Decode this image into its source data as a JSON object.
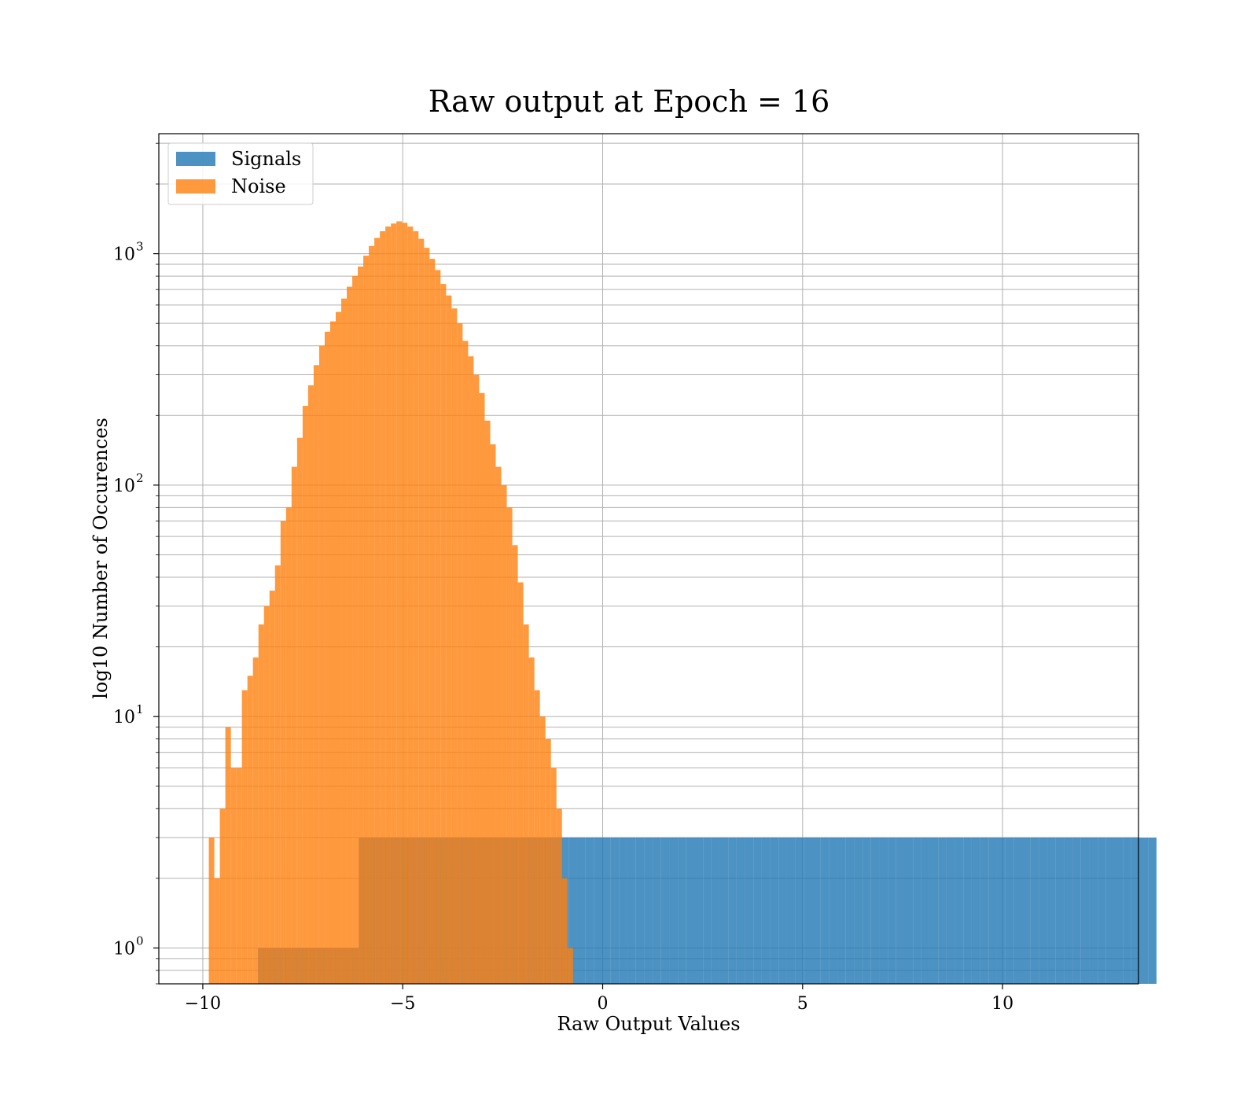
{
  "chart_data": {
    "type": "bar",
    "subtype": "histogram",
    "title": "Raw output at Epoch = 16",
    "xlabel": "Raw Output Values",
    "ylabel": "log10 Number of Occurences",
    "xlim": [
      -11.1,
      13.4
    ],
    "ylim": [
      0.7,
      3300
    ],
    "yscale": "log",
    "grid": true,
    "legend_position": "top-left",
    "colors": {
      "signals": "#1f77b4",
      "noise": "#ff7f0e"
    },
    "xticks": [
      {
        "value": -10,
        "label": "−10"
      },
      {
        "value": -5,
        "label": "−5"
      },
      {
        "value": 0,
        "label": "0"
      },
      {
        "value": 5,
        "label": "5"
      },
      {
        "value": 10,
        "label": "10"
      }
    ],
    "yticks": [
      {
        "value": 1,
        "label": "10",
        "exp": "0"
      },
      {
        "value": 10,
        "label": "10",
        "exp": "1"
      },
      {
        "value": 100,
        "label": "10",
        "exp": "2"
      },
      {
        "value": 1000,
        "label": "10",
        "exp": "3"
      }
    ],
    "series": [
      {
        "name": "Signals",
        "bin_start": -8.62,
        "bin_width": 0.21,
        "values": [
          1,
          1,
          1,
          1,
          1,
          1,
          1,
          1,
          1,
          1,
          1,
          1,
          3,
          3,
          3,
          3,
          3,
          3,
          3,
          3,
          3,
          3,
          3,
          3,
          3,
          3,
          3,
          3,
          3,
          3,
          3,
          3,
          3,
          3,
          3,
          3,
          3,
          3,
          3,
          3,
          3,
          3,
          3,
          3,
          3,
          3,
          3,
          3,
          3,
          3,
          3,
          3,
          3,
          3,
          3,
          3,
          3,
          3,
          3,
          3,
          3,
          3,
          3,
          3,
          3,
          3,
          3,
          3,
          3,
          3,
          3,
          3,
          3,
          3,
          3,
          3,
          3,
          3,
          3,
          3,
          3,
          3,
          3,
          3,
          3,
          3,
          3,
          3,
          3,
          3,
          3,
          3,
          3,
          3,
          3,
          3,
          3,
          3,
          3,
          3,
          3,
          3,
          3,
          3,
          3,
          3,
          3
        ]
      },
      {
        "name": "Noise",
        "bin_start": -9.85,
        "bin_width": 0.138,
        "values": [
          3,
          2,
          4,
          9,
          6,
          6,
          13,
          15,
          18,
          25,
          30,
          35,
          45,
          70,
          80,
          120,
          160,
          220,
          270,
          330,
          400,
          460,
          510,
          560,
          640,
          720,
          800,
          880,
          980,
          1080,
          1170,
          1250,
          1310,
          1350,
          1380,
          1360,
          1310,
          1250,
          1160,
          1060,
          950,
          850,
          740,
          660,
          580,
          500,
          420,
          360,
          300,
          250,
          190,
          150,
          120,
          100,
          80,
          55,
          38,
          25,
          18,
          13,
          10,
          8,
          6,
          4,
          2,
          1
        ]
      }
    ]
  }
}
